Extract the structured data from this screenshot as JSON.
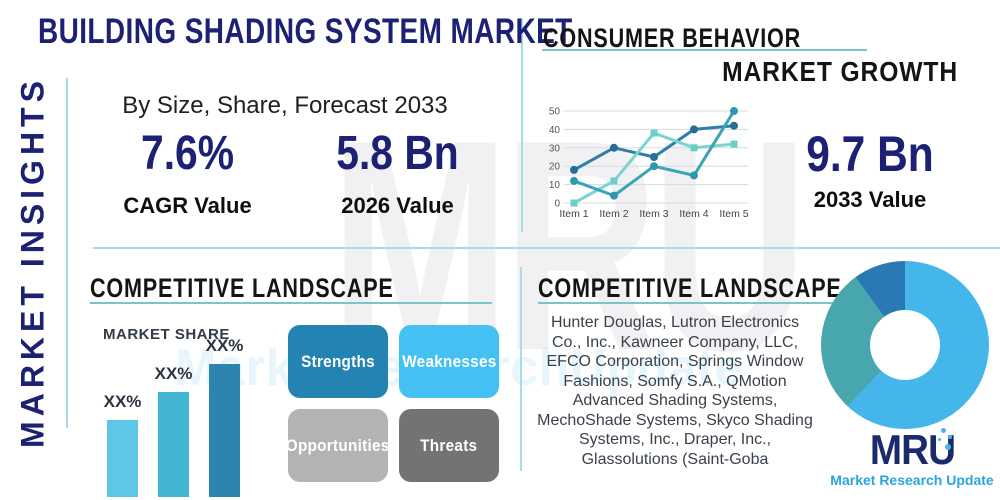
{
  "page": {
    "title": "BUILDING SHADING SYSTEM MARKET",
    "side_label": "MARKET INSIGHTS"
  },
  "insights": {
    "subtitle": "By Size, Share, Forecast 2033",
    "stats": [
      {
        "value": "7.6%",
        "label": "CAGR Value"
      },
      {
        "value": "5.8 Bn",
        "label": "2026 Value"
      }
    ]
  },
  "consumer": {
    "heading": "CONSUMER BEHAVIOR",
    "subheading": "MARKET GROWTH",
    "stat": {
      "value": "9.7 Bn",
      "label": "2033 Value"
    }
  },
  "competitive_left": {
    "heading": "COMPETITIVE LANDSCAPE",
    "chart_label": "MARKET SHARE"
  },
  "competitive_right": {
    "heading": "COMPETITIVE LANDSCAPE",
    "companies": "Hunter Douglas, Lutron Electronics\nCo., Inc., Kawneer Company, LLC,\nEFCO Corporation, Springs Window\nFashions, Somfy S.A., QMotion\nAdvanced Shading Systems,\nMechoShade Systems, Skyco Shading\nSystems, Inc., Draper, Inc.,\nGlassolutions (Saint-Goba"
  },
  "logo": {
    "text": "MRU",
    "tagline": "Market Research Update"
  },
  "watermark": {
    "big": "MRU",
    "blue": "MarketResearchUpdate"
  },
  "colors": {
    "navy": "#1c2173",
    "teal_line": "#74c7d1",
    "divider": "#a9dde2"
  },
  "chart_data": [
    {
      "id": "growth-line-chart",
      "type": "line",
      "x": [
        "Item 1",
        "Item 2",
        "Item 3",
        "Item 4",
        "Item 5"
      ],
      "series": [
        {
          "name": "series-1",
          "color": "#2e7ea8",
          "marker_color": "#266e95",
          "marker": "circle",
          "values": [
            18,
            30,
            25,
            40,
            42
          ]
        },
        {
          "name": "series-3",
          "color": "#7ad4cf",
          "marker_color": "#6fcdc8",
          "marker": "square",
          "values": [
            0,
            12,
            38,
            30,
            32
          ]
        },
        {
          "name": "series-2",
          "color": "#3aa3b8",
          "marker_color": "#2f96ad",
          "marker": "circle",
          "values": [
            12,
            4,
            20,
            15,
            50
          ]
        }
      ],
      "ylim": [
        0,
        50
      ],
      "yticks": [
        0,
        10,
        20,
        30,
        40,
        50
      ],
      "grid": true,
      "legend": "none"
    },
    {
      "id": "market-share-bars",
      "type": "bar",
      "title": "MARKET SHARE",
      "categories": [
        "bar-1",
        "bar-2",
        "bar-3"
      ],
      "labels": [
        "XX%",
        "XX%",
        "XX%"
      ],
      "values": [
        77,
        105,
        133
      ],
      "value_unit": "relative-height-px",
      "colors": [
        "#5ec7e6",
        "#41b5d2",
        "#2e84b0"
      ]
    },
    {
      "id": "swot-grid",
      "type": "table",
      "title": "SWOT",
      "cells": [
        {
          "label": "Strengths",
          "color": "#2384b3"
        },
        {
          "label": "Weaknesses",
          "color": "#45c0f2"
        },
        {
          "label": "Opportunities",
          "color": "#b3b3b3"
        },
        {
          "label": "Threats",
          "color": "#737373"
        }
      ]
    },
    {
      "id": "competitive-donut",
      "type": "pie",
      "subtype": "donut",
      "slices": [
        {
          "name": "segment-1",
          "pct": 62,
          "color": "#45b6ea"
        },
        {
          "name": "segment-2",
          "pct": 28,
          "color": "#48a6ae"
        },
        {
          "name": "segment-3",
          "pct": 10,
          "color": "#2a79b4"
        }
      ]
    }
  ]
}
